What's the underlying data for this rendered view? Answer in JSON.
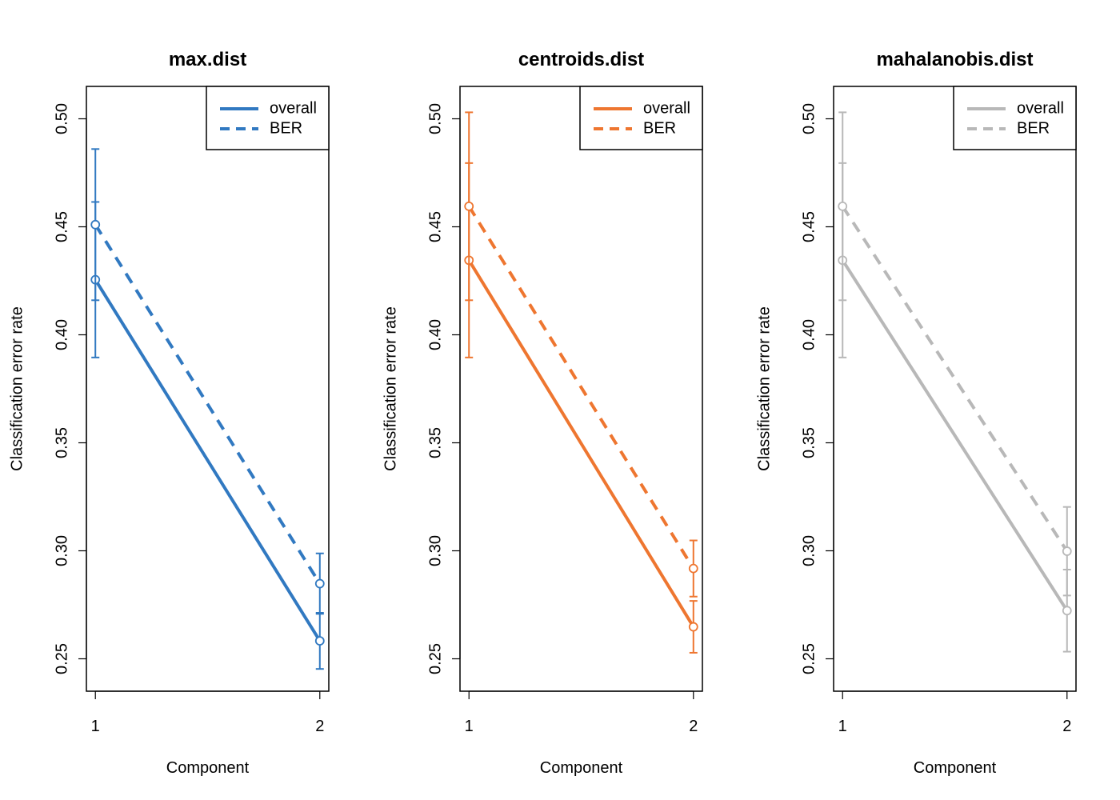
{
  "chart_data": [
    {
      "type": "line",
      "title": "max.dist",
      "xlabel": "Component",
      "ylabel": "Classification error rate",
      "x": [
        1,
        2
      ],
      "xlim": [
        0.96,
        2.04
      ],
      "ylim": [
        0.235,
        0.515
      ],
      "yticks": [
        0.25,
        0.3,
        0.35,
        0.4,
        0.45,
        0.5
      ],
      "ytick_labels": [
        "0.25",
        "0.30",
        "0.35",
        "0.40",
        "0.45",
        "0.50"
      ],
      "xticks": [
        1,
        2
      ],
      "xtick_labels": [
        "1",
        "2"
      ],
      "color": "#3179c1",
      "legend_position": "top-right",
      "grid": false,
      "series": [
        {
          "name": "overall",
          "linestyle": "solid",
          "values": [
            0.4255,
            0.2583
          ],
          "err_low": [
            0.3895,
            0.2453
          ],
          "err_high": [
            0.4615,
            0.2713
          ]
        },
        {
          "name": "BER",
          "linestyle": "dashed",
          "values": [
            0.451,
            0.2848
          ],
          "err_low": [
            0.416,
            0.2708
          ],
          "err_high": [
            0.486,
            0.2988
          ]
        }
      ]
    },
    {
      "type": "line",
      "title": "centroids.dist",
      "xlabel": "Component",
      "ylabel": "Classification error rate",
      "x": [
        1,
        2
      ],
      "xlim": [
        0.96,
        2.04
      ],
      "ylim": [
        0.235,
        0.515
      ],
      "yticks": [
        0.25,
        0.3,
        0.35,
        0.4,
        0.45,
        0.5
      ],
      "ytick_labels": [
        "0.25",
        "0.30",
        "0.35",
        "0.40",
        "0.45",
        "0.50"
      ],
      "xticks": [
        1,
        2
      ],
      "xtick_labels": [
        "1",
        "2"
      ],
      "color": "#ee7630",
      "legend_position": "top-right",
      "grid": false,
      "series": [
        {
          "name": "overall",
          "linestyle": "solid",
          "values": [
            0.4345,
            0.2648
          ],
          "err_low": [
            0.3895,
            0.2528
          ],
          "err_high": [
            0.4795,
            0.2768
          ]
        },
        {
          "name": "BER",
          "linestyle": "dashed",
          "values": [
            0.4595,
            0.2918
          ],
          "err_low": [
            0.416,
            0.2788
          ],
          "err_high": [
            0.503,
            0.3048
          ]
        }
      ]
    },
    {
      "type": "line",
      "title": "mahalanobis.dist",
      "xlabel": "Component",
      "ylabel": "Classification error rate",
      "x": [
        1,
        2
      ],
      "xlim": [
        0.96,
        2.04
      ],
      "ylim": [
        0.235,
        0.515
      ],
      "yticks": [
        0.25,
        0.3,
        0.35,
        0.4,
        0.45,
        0.5
      ],
      "ytick_labels": [
        "0.25",
        "0.30",
        "0.35",
        "0.40",
        "0.45",
        "0.50"
      ],
      "xticks": [
        1,
        2
      ],
      "xtick_labels": [
        "1",
        "2"
      ],
      "color": "#b8b8b8",
      "legend_position": "top-right",
      "grid": false,
      "series": [
        {
          "name": "overall",
          "linestyle": "solid",
          "values": [
            0.4345,
            0.2723
          ],
          "err_low": [
            0.3895,
            0.2533
          ],
          "err_high": [
            0.4795,
            0.2913
          ]
        },
        {
          "name": "BER",
          "linestyle": "dashed",
          "values": [
            0.4595,
            0.2998
          ],
          "err_low": [
            0.416,
            0.2793
          ],
          "err_high": [
            0.503,
            0.3203
          ]
        }
      ]
    }
  ]
}
